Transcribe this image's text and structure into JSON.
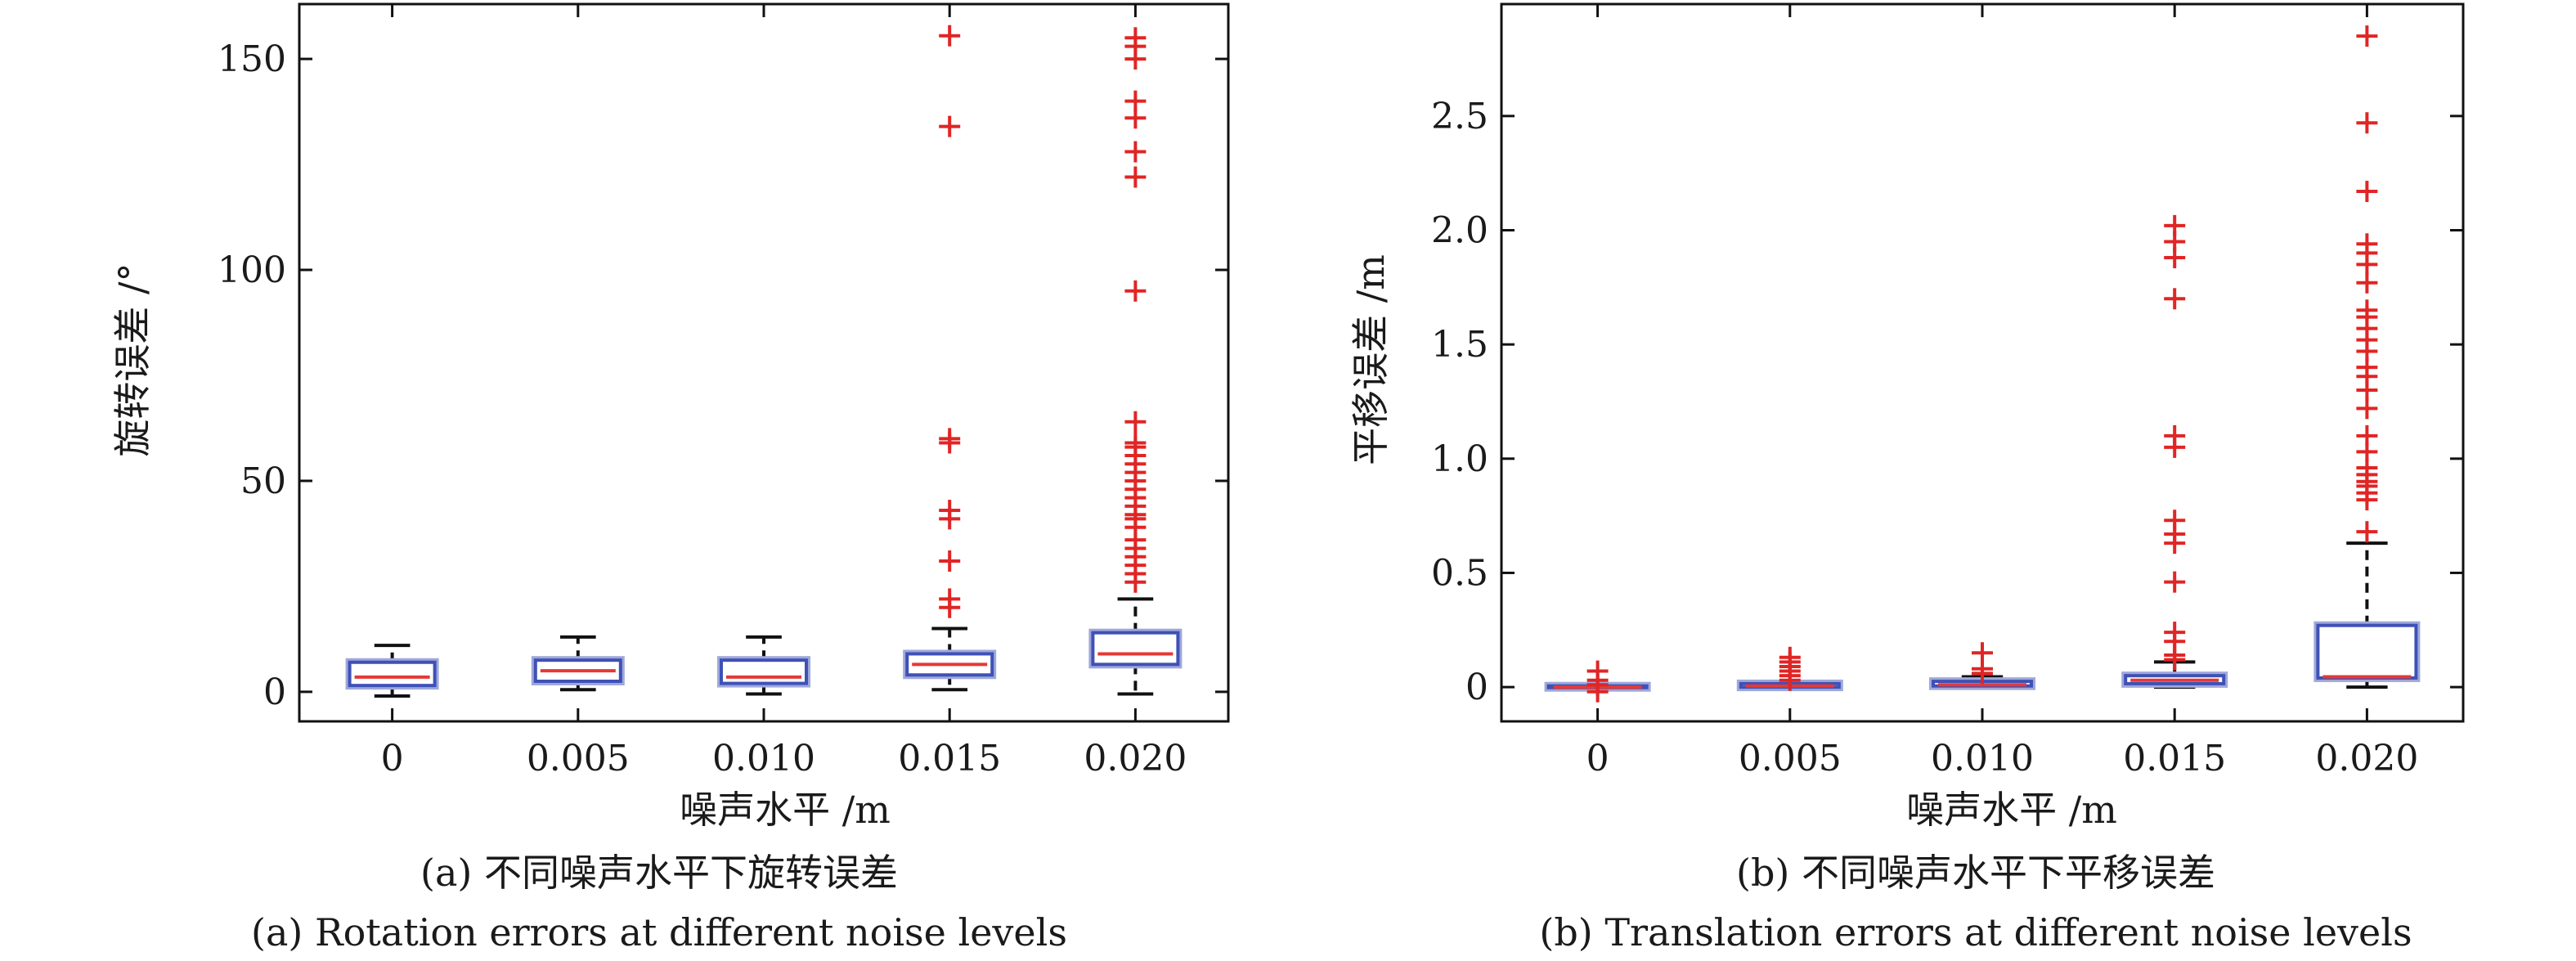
{
  "chart_data": [
    {
      "type": "box",
      "caption_cn": "(a) 不同噪声水平下旋转误差",
      "caption_en": "(a) Rotation errors at different noise levels",
      "xlabel": "噪声水平 /m",
      "ylabel": "旋转误差 /°",
      "categories": [
        "0",
        "0.005",
        "0.010",
        "0.015",
        "0.020"
      ],
      "ylim": [
        -7,
        163
      ],
      "yticks": [
        0,
        50,
        100,
        150
      ],
      "ytick_labels": [
        "0",
        "50",
        "100",
        "150"
      ],
      "boxes": [
        {
          "category": "0",
          "whisker_low": -1,
          "q1": 1.5,
          "median": 3.5,
          "q3": 7,
          "whisker_high": 11,
          "outliers": []
        },
        {
          "category": "0.005",
          "whisker_low": 0.5,
          "q1": 2.5,
          "median": 5,
          "q3": 7.5,
          "whisker_high": 13,
          "outliers": []
        },
        {
          "category": "0.010",
          "whisker_low": -0.5,
          "q1": 2,
          "median": 3.5,
          "q3": 7.5,
          "whisker_high": 13,
          "outliers": []
        },
        {
          "category": "0.015",
          "whisker_low": 0.5,
          "q1": 4,
          "median": 6.5,
          "q3": 9,
          "whisker_high": 15,
          "outliers": [
            20,
            22,
            31,
            41,
            43,
            59,
            60,
            134,
            155.5
          ]
        },
        {
          "category": "0.020",
          "whisker_low": -0.5,
          "q1": 6.5,
          "median": 9,
          "q3": 14,
          "whisker_high": 22,
          "outliers": [
            26,
            28,
            30,
            32,
            34,
            36,
            39,
            41,
            42,
            44,
            46,
            48,
            50,
            52,
            54,
            56,
            58,
            59,
            64,
            95,
            122,
            128,
            136,
            140,
            150,
            153,
            155
          ]
        }
      ]
    },
    {
      "type": "box",
      "caption_cn": "(b) 不同噪声水平下平移误差",
      "caption_en": "(b) Translation errors at different noise levels",
      "xlabel": "噪声水平 /m",
      "ylabel": "平移误差 /m",
      "categories": [
        "0",
        "0.005",
        "0.010",
        "0.015",
        "0.020"
      ],
      "ylim": [
        -0.15,
        2.99
      ],
      "yticks": [
        0,
        0.5,
        1.0,
        1.5,
        2.0,
        2.5
      ],
      "ytick_labels": [
        "0",
        "0.5",
        "1.0",
        "1.5",
        "2.0",
        "2.5"
      ],
      "boxes": [
        {
          "category": "0",
          "whisker_low": 0,
          "q1": 0,
          "median": 0,
          "q3": 0.005,
          "whisker_high": 0.005,
          "outliers": [
            -0.02,
            0.01,
            0.03,
            0.07
          ]
        },
        {
          "category": "0.005",
          "whisker_low": 0,
          "q1": 0,
          "median": 0.005,
          "q3": 0.015,
          "whisker_high": 0.02,
          "outliers": [
            0.03,
            0.05,
            0.07,
            0.09,
            0.11,
            0.13
          ]
        },
        {
          "category": "0.010",
          "whisker_low": 0,
          "q1": 0.005,
          "median": 0.01,
          "q3": 0.025,
          "whisker_high": 0.045,
          "outliers": [
            0.06,
            0.08,
            0.15
          ]
        },
        {
          "category": "0.015",
          "whisker_low": 0,
          "q1": 0.015,
          "median": 0.03,
          "q3": 0.05,
          "whisker_high": 0.11,
          "outliers": [
            0.12,
            0.14,
            0.2,
            0.24,
            0.46,
            0.63,
            0.67,
            0.73,
            1.05,
            1.1,
            1.7,
            1.88,
            1.95,
            2.02
          ]
        },
        {
          "category": "0.020",
          "whisker_low": 0,
          "q1": 0.04,
          "median": 0.045,
          "q3": 0.27,
          "whisker_high": 0.63,
          "outliers": [
            0.68,
            0.82,
            0.85,
            0.88,
            0.9,
            0.93,
            0.96,
            1.03,
            1.1,
            1.22,
            1.3,
            1.36,
            1.4,
            1.47,
            1.52,
            1.57,
            1.62,
            1.65,
            1.77,
            1.85,
            1.9,
            1.94,
            2.17,
            2.47,
            2.85
          ]
        }
      ]
    }
  ],
  "colors": {
    "box_edge": "#3f51b5",
    "box_glow": "#9fa8da",
    "median": "#e53935",
    "outlier": "#e02525",
    "whisker": "#111111",
    "axis": "#111111"
  }
}
